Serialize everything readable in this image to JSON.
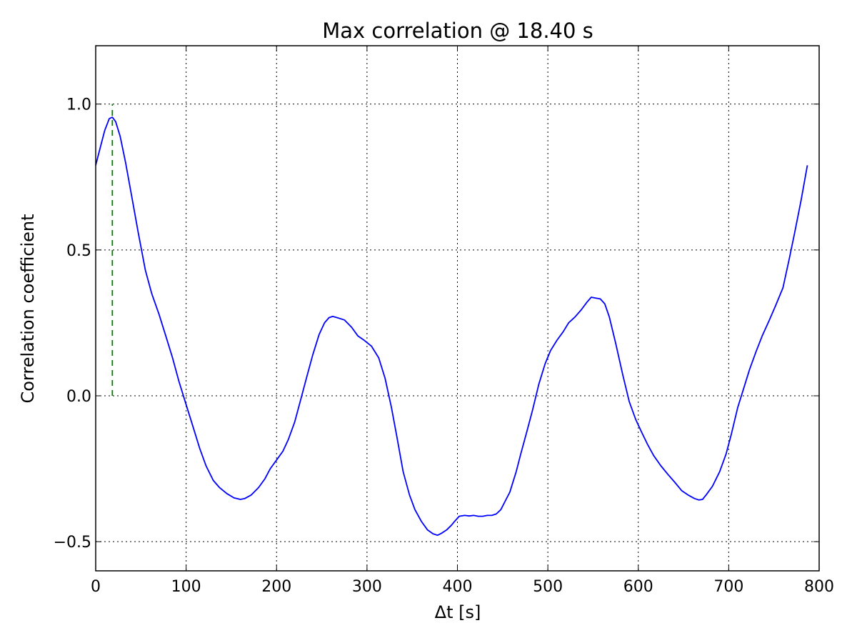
{
  "chart_data": {
    "type": "line",
    "title": "Max correlation @ 18.40 s",
    "xlabel": "Δt [s]",
    "ylabel": "Correlation coefficient",
    "xlim": [
      0,
      800
    ],
    "ylim": [
      -0.6,
      1.2
    ],
    "xticks": [
      0,
      100,
      200,
      300,
      400,
      500,
      600,
      700,
      800
    ],
    "yticks": [
      -0.5,
      0.0,
      0.5,
      1.0
    ],
    "xtick_labels": [
      "0",
      "100",
      "200",
      "300",
      "400",
      "500",
      "600",
      "700",
      "800"
    ],
    "ytick_labels": [
      "−0.5",
      "0.0",
      "0.5",
      "1.0"
    ],
    "grid": true,
    "series": [
      {
        "color": "#0000ff",
        "x": [
          0,
          5,
          10,
          15,
          18.4,
          22,
          27,
          33,
          40,
          47,
          55,
          62,
          70,
          78,
          85,
          92,
          100,
          107,
          115,
          122,
          130,
          137,
          145,
          153,
          160,
          165,
          172,
          180,
          187,
          193,
          200,
          207,
          213,
          220,
          227,
          233,
          240,
          247,
          253,
          258,
          262,
          267,
          275,
          283,
          290,
          297,
          305,
          313,
          320,
          327,
          333,
          340,
          347,
          353,
          360,
          367,
          373,
          378,
          382,
          388,
          393,
          397,
          402,
          408,
          413,
          418,
          423,
          428,
          433,
          438,
          443,
          448,
          453,
          458,
          465,
          470,
          477,
          483,
          490,
          497,
          503,
          510,
          517,
          523,
          530,
          537,
          543,
          548,
          553,
          558,
          563,
          568,
          575,
          583,
          590,
          597,
          603,
          610,
          617,
          625,
          633,
          640,
          648,
          655,
          662,
          667,
          671,
          675,
          682,
          690,
          697,
          703,
          710,
          717,
          723,
          730,
          737,
          745,
          752,
          760,
          767,
          773,
          780,
          787
        ],
        "y": [
          0.79,
          0.85,
          0.91,
          0.95,
          0.955,
          0.94,
          0.89,
          0.8,
          0.68,
          0.56,
          0.43,
          0.35,
          0.28,
          0.2,
          0.13,
          0.05,
          -0.03,
          -0.1,
          -0.18,
          -0.24,
          -0.29,
          -0.315,
          -0.335,
          -0.35,
          -0.355,
          -0.352,
          -0.34,
          -0.315,
          -0.285,
          -0.25,
          -0.22,
          -0.19,
          -0.15,
          -0.09,
          -0.01,
          0.06,
          0.14,
          0.21,
          0.25,
          0.268,
          0.272,
          0.268,
          0.26,
          0.235,
          0.205,
          0.19,
          0.17,
          0.13,
          0.06,
          -0.04,
          -0.14,
          -0.26,
          -0.34,
          -0.39,
          -0.43,
          -0.46,
          -0.473,
          -0.478,
          -0.472,
          -0.46,
          -0.445,
          -0.43,
          -0.413,
          -0.41,
          -0.412,
          -0.41,
          -0.413,
          -0.413,
          -0.41,
          -0.41,
          -0.405,
          -0.39,
          -0.36,
          -0.33,
          -0.26,
          -0.2,
          -0.12,
          -0.05,
          0.04,
          0.11,
          0.155,
          0.19,
          0.22,
          0.25,
          0.27,
          0.295,
          0.32,
          0.338,
          0.335,
          0.332,
          0.315,
          0.27,
          0.18,
          0.07,
          -0.02,
          -0.08,
          -0.12,
          -0.165,
          -0.205,
          -0.24,
          -0.27,
          -0.295,
          -0.325,
          -0.34,
          -0.352,
          -0.357,
          -0.355,
          -0.34,
          -0.31,
          -0.26,
          -0.2,
          -0.13,
          -0.04,
          0.03,
          0.09,
          0.15,
          0.205,
          0.26,
          0.31,
          0.37,
          0.47,
          0.56,
          0.67,
          0.79
        ]
      }
    ],
    "annotations": [
      {
        "type": "vline",
        "x": 18.4,
        "y_from": 0.0,
        "y_to": 1.0,
        "color": "#008000",
        "style": "dashed"
      }
    ]
  }
}
